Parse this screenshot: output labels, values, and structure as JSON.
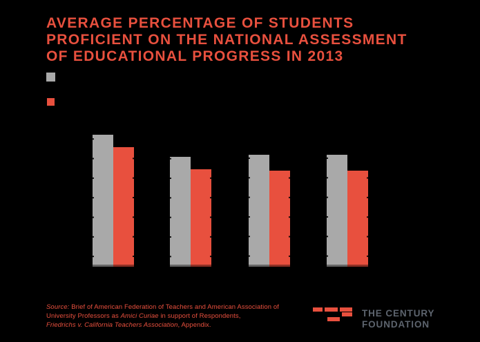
{
  "header": {
    "title": "AVERAGE PERCENTAGE OF STUDENTS\nPROFICIENT ON THE NATIONAL ASSESSMENT\nOF EDUCATIONAL PROGRESS IN 2013"
  },
  "legend": {
    "items": [
      {
        "label": "",
        "color": "#A9A9A9",
        "label_visible": false
      },
      {
        "label": "",
        "color": "#E8503E",
        "label_visible": false
      }
    ]
  },
  "chart_data": {
    "type": "bar",
    "title": "AVERAGE PERCENTAGE OF STUDENTS PROFICIENT ON THE NATIONAL ASSESSMENT OF EDUCATIONAL PROGRESS IN 2013",
    "categories": [
      "",
      "",
      "",
      ""
    ],
    "series": [
      {
        "name": "",
        "color": "#A9A9A9",
        "values": [
          42,
          35,
          35.5,
          35.5
        ]
      },
      {
        "name": "",
        "color": "#E8503E",
        "values": [
          38,
          31,
          30.5,
          30.5
        ]
      }
    ],
    "ylabel": "",
    "xlabel": "",
    "ylim": [
      0,
      44
    ],
    "estimated": true,
    "note": "No axis, tick labels, category labels or legend text are visible (dark text on black background); values estimated from bar heights. Faint gridline notches appear on bar edges every ~28px.",
    "legend_position": "top-left below title",
    "grid": false
  },
  "source": {
    "prefix_italic": "Source:",
    "line1_rest": " Brief of American Federation of Teachers and American Association of",
    "line2_pre": "University Professors as ",
    "line2_italic": "Amici Curiae",
    "line2_rest": " in support of Respondents,",
    "line3_italic": "Friedrichs v. California Teachers Association",
    "line3_rest": ", Appendix."
  },
  "logo": {
    "wordmark": "THE CENTURY\nFOUNDATION",
    "mark_color": "#E8503E",
    "text_color": "#5D646E"
  },
  "colors": {
    "background": "#000000",
    "accent_red": "#E8503E",
    "bar_gray": "#A9A9A9",
    "wordmark_gray": "#5D646E"
  }
}
